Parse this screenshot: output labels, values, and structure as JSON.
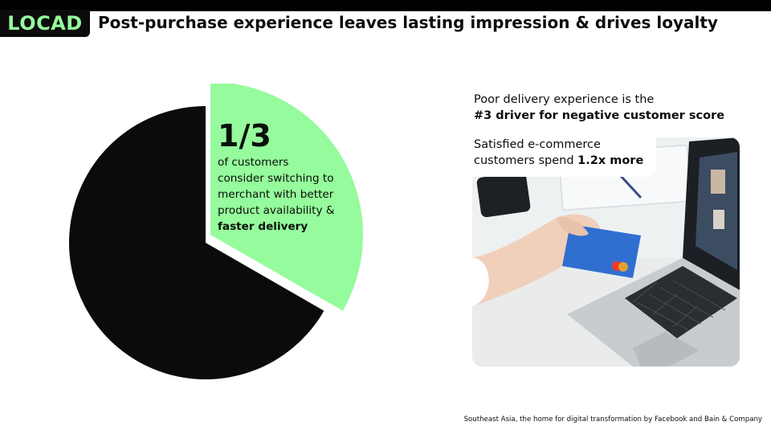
{
  "logo": {
    "text": "LOCAD"
  },
  "title": "Post-purchase experience leaves lasting impression & drives loyalty",
  "pie": {
    "share": 0.333,
    "colors": {
      "highlight": "#95fb9c",
      "rest": "#0b0b0b"
    },
    "fraction": "1/3",
    "desc_lines": [
      "of customers",
      "consider switching to",
      "merchant with better",
      "product availability &"
    ],
    "desc_bold": "faster delivery"
  },
  "stat1": {
    "line1": "Poor delivery experience is the",
    "line2_bold": "#3 driver for negative customer score"
  },
  "stat2": {
    "line1": "Satisfied e-commerce",
    "line2": "customers spend ",
    "line2_bold": "1.2x more"
  },
  "source": "Southeast Asia, the home for digital transformation by Facebook and Bain & Company"
}
